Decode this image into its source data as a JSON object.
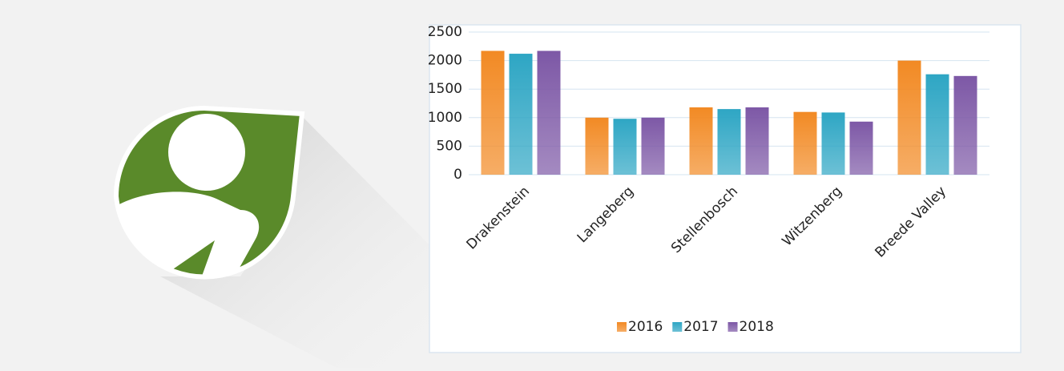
{
  "chart_data": {
    "type": "bar",
    "categories": [
      "Drakenstein",
      "Langeberg",
      "Stellenbosch",
      "Witzenberg",
      "Breede Valley"
    ],
    "series": [
      {
        "name": "2016",
        "color": "#f28a24",
        "values": [
          2170,
          1000,
          1180,
          1100,
          2000
        ]
      },
      {
        "name": "2017",
        "color": "#2ea6c4",
        "values": [
          2120,
          980,
          1150,
          1090,
          1760
        ]
      },
      {
        "name": "2018",
        "color": "#7d58a6",
        "values": [
          2170,
          1000,
          1180,
          930,
          1730
        ]
      }
    ],
    "ylim": [
      0,
      2500
    ],
    "yticks": [
      0,
      500,
      1000,
      1500,
      2000,
      2500
    ],
    "grid": true,
    "legend": "bottom"
  }
}
